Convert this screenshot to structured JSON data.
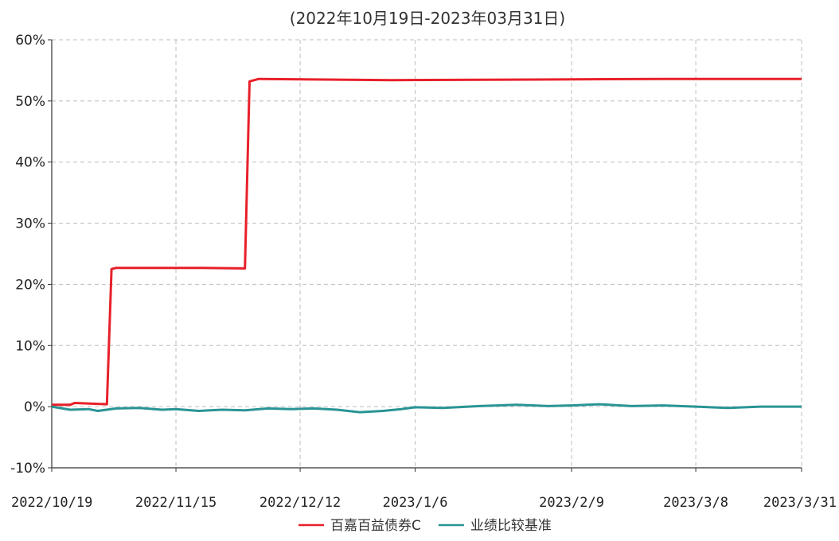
{
  "chart_data": {
    "type": "line",
    "title": "",
    "subtitle": "(2022年10月19日-2023年03月31日)",
    "xlabel": "",
    "ylabel": "",
    "x_tick_labels": [
      "2022/10/19",
      "2022/11/15",
      "2022/12/12",
      "2023/1/6",
      "2023/2/9",
      "2023/3/8",
      "2023/3/31"
    ],
    "x_tick_dates": [
      "2022-10-19",
      "2022-11-15",
      "2022-12-12",
      "2023-01-06",
      "2023-02-09",
      "2023-03-08",
      "2023-03-31"
    ],
    "xlim": [
      "2022-10-19",
      "2023-03-31"
    ],
    "y_tick_labels": [
      "60%",
      "50%",
      "40%",
      "30%",
      "20%",
      "10%",
      "0%",
      "-10%"
    ],
    "y_tick_values": [
      60,
      50,
      40,
      30,
      20,
      10,
      0,
      -10
    ],
    "ylim": [
      -10,
      60
    ],
    "grid": true,
    "legend_position": "bottom-center",
    "series": [
      {
        "name": "百嘉百益债券C",
        "color": "#e8202a",
        "points": [
          [
            "2022-10-19",
            0.3
          ],
          [
            "2022-10-23",
            0.3
          ],
          [
            "2022-10-24",
            0.6
          ],
          [
            "2022-10-31",
            0.4
          ],
          [
            "2022-11-01",
            22.5
          ],
          [
            "2022-11-02",
            22.7
          ],
          [
            "2022-11-20",
            22.7
          ],
          [
            "2022-11-30",
            22.6
          ],
          [
            "2022-12-01",
            53.2
          ],
          [
            "2022-12-03",
            53.6
          ],
          [
            "2023-01-01",
            53.4
          ],
          [
            "2023-02-01",
            53.5
          ],
          [
            "2023-03-01",
            53.6
          ],
          [
            "2023-03-31",
            53.6
          ]
        ]
      },
      {
        "name": "业绩比较基准",
        "color": "#2a9494",
        "points": [
          [
            "2022-10-19",
            0.0
          ],
          [
            "2022-10-23",
            -0.5
          ],
          [
            "2022-10-27",
            -0.4
          ],
          [
            "2022-10-29",
            -0.7
          ],
          [
            "2022-11-02",
            -0.3
          ],
          [
            "2022-11-07",
            -0.2
          ],
          [
            "2022-11-12",
            -0.5
          ],
          [
            "2022-11-15",
            -0.4
          ],
          [
            "2022-11-20",
            -0.7
          ],
          [
            "2022-11-25",
            -0.5
          ],
          [
            "2022-11-30",
            -0.6
          ],
          [
            "2022-12-05",
            -0.3
          ],
          [
            "2022-12-10",
            -0.4
          ],
          [
            "2022-12-15",
            -0.3
          ],
          [
            "2022-12-20",
            -0.5
          ],
          [
            "2022-12-25",
            -0.9
          ],
          [
            "2022-12-30",
            -0.7
          ],
          [
            "2023-01-03",
            -0.4
          ],
          [
            "2023-01-06",
            -0.1
          ],
          [
            "2023-01-12",
            -0.2
          ],
          [
            "2023-01-20",
            0.1
          ],
          [
            "2023-01-28",
            0.3
          ],
          [
            "2023-02-04",
            0.1
          ],
          [
            "2023-02-09",
            0.2
          ],
          [
            "2023-02-15",
            0.4
          ],
          [
            "2023-02-22",
            0.1
          ],
          [
            "2023-03-01",
            0.2
          ],
          [
            "2023-03-08",
            0.0
          ],
          [
            "2023-03-15",
            -0.2
          ],
          [
            "2023-03-22",
            0.0
          ],
          [
            "2023-03-31",
            0.0
          ]
        ]
      }
    ]
  }
}
